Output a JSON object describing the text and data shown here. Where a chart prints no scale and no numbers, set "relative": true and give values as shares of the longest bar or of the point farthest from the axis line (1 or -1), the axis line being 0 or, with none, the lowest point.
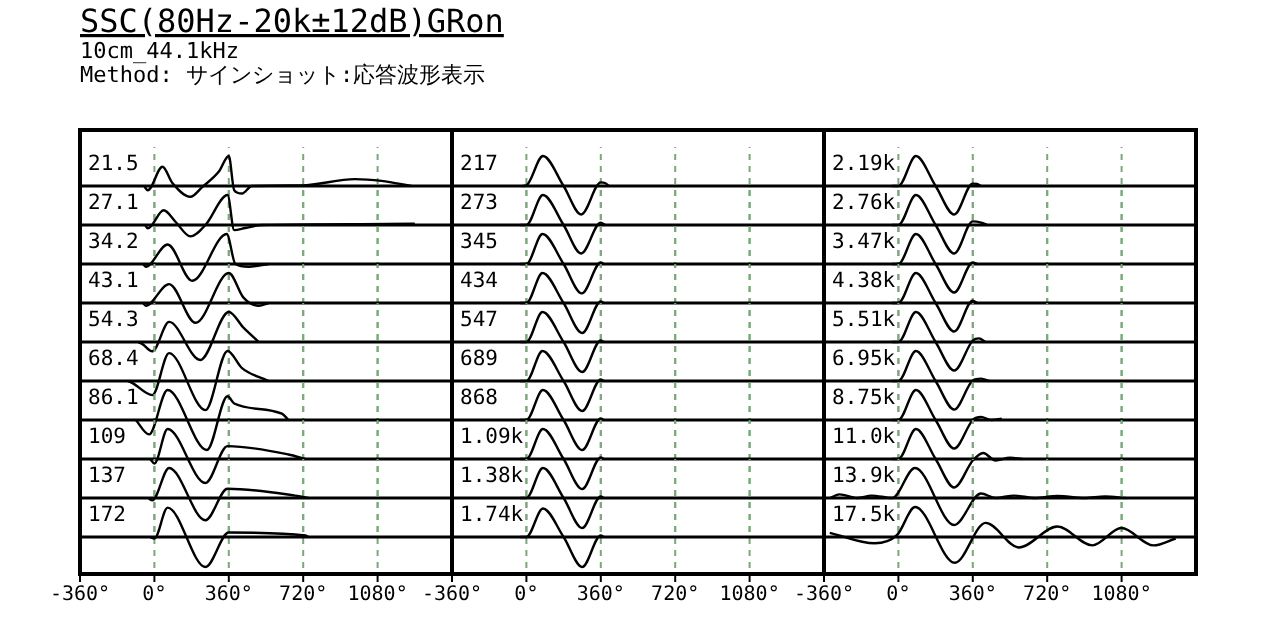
{
  "chart_data": [
    {
      "type": "line",
      "title": "SSC(80Hz-20k±12dB)GRon",
      "subtitle": "10cm_44.1kHz",
      "annotations": [
        "Method: サインショット:応答波形表示"
      ],
      "relative": true,
      "grid": "x",
      "tick_labels": false,
      "xlim": [
        -360,
        1440
      ],
      "xticks": [
        {
          "value": -360,
          "label": null
        },
        {
          "value": 0,
          "label": null
        },
        {
          "value": 360,
          "label": null
        },
        {
          "value": 720,
          "label": null
        },
        {
          "value": 1080,
          "label": null
        }
      ],
      "x": [
        -50,
        -32,
        39,
        87,
        174,
        231,
        312,
        360,
        386,
        424,
        472,
        713,
        970,
        1099,
        1244
      ],
      "series": [
        {
          "name": "21.5",
          "color": "#000000",
          "values": [
            0,
            -0.14,
            0.64,
            0.1,
            -0.36,
            -0.04,
            0.48,
            1,
            -0.14,
            -0.25,
            0,
            0.02,
            0.23,
            0.17,
            0
          ]
        }
      ]
    },
    {
      "type": "line",
      "relative": true,
      "grid": "x",
      "tick_labels": false,
      "xlim": [
        -360,
        1440
      ],
      "xticks": [
        {
          "value": -360,
          "label": null
        },
        {
          "value": 0,
          "label": null
        },
        {
          "value": 360,
          "label": null
        },
        {
          "value": 720,
          "label": null
        },
        {
          "value": 1080,
          "label": null
        }
      ],
      "x": [
        -45,
        -32,
        45,
        103,
        174,
        247,
        354,
        386,
        440,
        521,
        1000,
        1260
      ],
      "series": [
        {
          "name": "27.1",
          "color": "#000000",
          "values": [
            0,
            -0.11,
            0.49,
            0.1,
            -0.38,
            0,
            1,
            -0.17,
            -0.1,
            0,
            0.03,
            0.04
          ]
        }
      ]
    },
    {
      "type": "line",
      "relative": true,
      "grid": "x",
      "tick_labels": false,
      "xlim": [
        -360,
        1440
      ],
      "xticks": [
        {
          "value": -360,
          "label": null
        },
        {
          "value": 0,
          "label": null
        },
        {
          "value": 360,
          "label": null
        },
        {
          "value": 720,
          "label": null
        },
        {
          "value": 1080,
          "label": null
        }
      ],
      "x": [
        -55,
        -42,
        64,
        183,
        350,
        392,
        456,
        553
      ],
      "series": [
        {
          "name": "34.2",
          "color": "#000000",
          "values": [
            0,
            -0.09,
            0.65,
            -0.56,
            1,
            0,
            -0.09,
            0
          ]
        }
      ]
    },
    {
      "type": "line",
      "relative": true,
      "grid": "x",
      "tick_labels": false,
      "xlim": [
        -360,
        1440
      ],
      "xticks": [
        {
          "value": -360,
          "label": null
        },
        {
          "value": 0,
          "label": null
        },
        {
          "value": 360,
          "label": null
        },
        {
          "value": 720,
          "label": null
        },
        {
          "value": 1080,
          "label": null
        }
      ],
      "x": [
        -55,
        -42,
        71,
        199,
        360,
        431,
        505,
        553
      ],
      "series": [
        {
          "name": "43.1",
          "color": "#000000",
          "values": [
            0,
            -0.09,
            0.63,
            -0.66,
            1,
            0.18,
            -0.09,
            0
          ]
        }
      ]
    },
    {
      "type": "line",
      "relative": true,
      "grid": "x",
      "tick_labels": false,
      "xlim": [
        -360,
        1440
      ],
      "xticks": [
        {
          "value": -360,
          "label": null
        },
        {
          "value": 0,
          "label": null
        },
        {
          "value": 360,
          "label": null
        },
        {
          "value": 720,
          "label": null
        },
        {
          "value": 1080,
          "label": null
        }
      ],
      "x": [
        -80,
        -58,
        -10,
        71,
        222,
        360,
        431,
        505
      ],
      "series": [
        {
          "name": "54.3",
          "color": "#000000",
          "values": [
            0,
            -0.07,
            -0.31,
            0.67,
            -0.6,
            1,
            0.48,
            0
          ]
        }
      ]
    },
    {
      "type": "line",
      "relative": true,
      "grid": "x",
      "tick_labels": false,
      "xlim": [
        -360,
        1440
      ],
      "xticks": [
        {
          "value": -360,
          "label": null
        },
        {
          "value": 0,
          "label": null
        },
        {
          "value": 360,
          "label": null
        },
        {
          "value": 720,
          "label": null
        },
        {
          "value": 1080,
          "label": null
        }
      ],
      "x": [
        -130,
        -106,
        -10,
        71,
        247,
        354,
        424,
        553
      ],
      "series": [
        {
          "name": "68.4",
          "color": "#000000",
          "values": [
            0,
            -0.07,
            -0.47,
            0.93,
            -0.97,
            1,
            0.43,
            0
          ]
        }
      ]
    },
    {
      "type": "line",
      "relative": true,
      "grid": "x",
      "tick_labels": false,
      "xlim": [
        -360,
        1440
      ],
      "xticks": [
        {
          "value": -360,
          "label": null
        },
        {
          "value": 0,
          "label": null
        },
        {
          "value": 360,
          "label": null
        },
        {
          "value": 720,
          "label": null
        },
        {
          "value": 1080,
          "label": null
        }
      ],
      "x": [
        -90,
        -26,
        64,
        254,
        354,
        386,
        617,
        649
      ],
      "series": [
        {
          "name": "86.1",
          "color": "#000000",
          "values": [
            0,
            -0.48,
            1,
            -1,
            0.79,
            0.55,
            0.21,
            0
          ]
        }
      ]
    },
    {
      "type": "line",
      "relative": true,
      "grid": "x",
      "tick_labels": false,
      "xlim": [
        -360,
        1440
      ],
      "xticks": [
        {
          "value": -360,
          "label": null
        },
        {
          "value": 0,
          "label": null
        },
        {
          "value": 360,
          "label": null
        },
        {
          "value": 720,
          "label": null
        },
        {
          "value": 1080,
          "label": null
        }
      ],
      "x": [
        -20,
        0,
        64,
        247,
        354,
        649,
        730
      ],
      "series": [
        {
          "name": "109",
          "color": "#000000",
          "values": [
            0,
            -0.15,
            1,
            -0.8,
            0.43,
            0.15,
            0
          ]
        }
      ]
    },
    {
      "type": "line",
      "relative": true,
      "grid": "x",
      "tick_labels": false,
      "xlim": [
        -360,
        1440
      ],
      "xticks": [
        {
          "value": -360,
          "label": null
        },
        {
          "value": 0,
          "label": null
        },
        {
          "value": 360,
          "label": null
        },
        {
          "value": 720,
          "label": null
        },
        {
          "value": 1080,
          "label": null
        }
      ],
      "x": [
        -30,
        -10,
        71,
        247,
        354,
        681,
        746
      ],
      "series": [
        {
          "name": "137",
          "color": "#000000",
          "values": [
            0,
            -0.08,
            1,
            -0.74,
            0.31,
            0.08,
            0
          ]
        }
      ]
    },
    {
      "type": "line",
      "relative": true,
      "grid": "x",
      "tick_labels": "x",
      "xlim": [
        -360,
        1440
      ],
      "xticks": [
        {
          "value": -360,
          "label": "-360°"
        },
        {
          "value": 0,
          "label": "0°"
        },
        {
          "value": 360,
          "label": "360°"
        },
        {
          "value": 720,
          "label": "720°"
        },
        {
          "value": 1080,
          "label": "1080°"
        }
      ],
      "x": [
        -20,
        0,
        64,
        247,
        360,
        730,
        746
      ],
      "series": [
        {
          "name": "172",
          "color": "#000000",
          "values": [
            0,
            -0.05,
            0.98,
            -1,
            0.15,
            0.05,
            0
          ]
        }
      ]
    },
    {
      "type": "line",
      "relative": true,
      "grid": "x",
      "tick_labels": false,
      "xlim": [
        -360,
        1440
      ],
      "xticks": [
        {
          "value": -360,
          "label": null
        },
        {
          "value": 0,
          "label": null
        },
        {
          "value": 360,
          "label": null
        },
        {
          "value": 720,
          "label": null
        },
        {
          "value": 1080,
          "label": null
        }
      ],
      "x": [
        -20,
        0,
        80,
        180,
        265,
        360,
        380,
        400
      ],
      "series": [
        {
          "name": "217",
          "color": "#000000",
          "values": [
            0,
            0.02,
            1,
            0,
            -0.95,
            0.12,
            0.1,
            0
          ]
        }
      ]
    },
    {
      "type": "line",
      "relative": true,
      "grid": "x",
      "tick_labels": false,
      "xlim": [
        -360,
        1440
      ],
      "xticks": [
        {
          "value": -360,
          "label": null
        },
        {
          "value": 0,
          "label": null
        },
        {
          "value": 360,
          "label": null
        },
        {
          "value": 720,
          "label": null
        },
        {
          "value": 1080,
          "label": null
        }
      ],
      "x": [
        -30,
        0,
        80,
        180,
        265,
        360,
        380
      ],
      "series": [
        {
          "name": "273",
          "color": "#000000",
          "values": [
            0,
            0,
            1,
            0,
            -0.95,
            0.08,
            0
          ]
        }
      ]
    },
    {
      "type": "line",
      "relative": true,
      "grid": "x",
      "tick_labels": false,
      "xlim": [
        -360,
        1440
      ],
      "xticks": [
        {
          "value": -360,
          "label": null
        },
        {
          "value": 0,
          "label": null
        },
        {
          "value": 360,
          "label": null
        },
        {
          "value": 720,
          "label": null
        },
        {
          "value": 1080,
          "label": null
        }
      ],
      "x": [
        -30,
        0,
        78,
        180,
        268,
        360,
        375
      ],
      "series": [
        {
          "name": "345",
          "color": "#000000",
          "values": [
            0,
            0,
            1,
            0,
            -0.98,
            0.05,
            0
          ]
        }
      ]
    },
    {
      "type": "line",
      "relative": true,
      "grid": "x",
      "tick_labels": false,
      "xlim": [
        -360,
        1440
      ],
      "xticks": [
        {
          "value": -360,
          "label": null
        },
        {
          "value": 0,
          "label": null
        },
        {
          "value": 360,
          "label": null
        },
        {
          "value": 720,
          "label": null
        },
        {
          "value": 1080,
          "label": null
        }
      ],
      "x": [
        -30,
        0,
        78,
        180,
        270,
        360,
        375
      ],
      "series": [
        {
          "name": "434",
          "color": "#000000",
          "values": [
            0,
            0,
            1,
            0,
            -1,
            0.05,
            0
          ]
        }
      ]
    },
    {
      "type": "line",
      "relative": true,
      "grid": "x",
      "tick_labels": false,
      "xlim": [
        -360,
        1440
      ],
      "xticks": [
        {
          "value": -360,
          "label": null
        },
        {
          "value": 0,
          "label": null
        },
        {
          "value": 360,
          "label": null
        },
        {
          "value": 720,
          "label": null
        },
        {
          "value": 1080,
          "label": null
        }
      ],
      "x": [
        -30,
        0,
        78,
        180,
        270,
        360,
        375
      ],
      "series": [
        {
          "name": "547",
          "color": "#000000",
          "values": [
            0,
            0,
            1,
            0,
            -1,
            0.05,
            0
          ]
        }
      ]
    },
    {
      "type": "line",
      "relative": true,
      "grid": "x",
      "tick_labels": false,
      "xlim": [
        -360,
        1440
      ],
      "xticks": [
        {
          "value": -360,
          "label": null
        },
        {
          "value": 0,
          "label": null
        },
        {
          "value": 360,
          "label": null
        },
        {
          "value": 720,
          "label": null
        },
        {
          "value": 1080,
          "label": null
        }
      ],
      "x": [
        -30,
        0,
        78,
        180,
        270,
        360,
        375
      ],
      "series": [
        {
          "name": "689",
          "color": "#000000",
          "values": [
            0,
            0,
            1,
            0,
            -1,
            0.05,
            0
          ]
        }
      ]
    },
    {
      "type": "line",
      "relative": true,
      "grid": "x",
      "tick_labels": false,
      "xlim": [
        -360,
        1440
      ],
      "xticks": [
        {
          "value": -360,
          "label": null
        },
        {
          "value": 0,
          "label": null
        },
        {
          "value": 360,
          "label": null
        },
        {
          "value": 720,
          "label": null
        },
        {
          "value": 1080,
          "label": null
        }
      ],
      "x": [
        -30,
        0,
        80,
        180,
        270,
        360,
        375
      ],
      "series": [
        {
          "name": "868",
          "color": "#000000",
          "values": [
            0,
            0,
            1,
            0,
            -1,
            0.05,
            0
          ]
        }
      ]
    },
    {
      "type": "line",
      "relative": true,
      "grid": "x",
      "tick_labels": false,
      "xlim": [
        -360,
        1440
      ],
      "xticks": [
        {
          "value": -360,
          "label": null
        },
        {
          "value": 0,
          "label": null
        },
        {
          "value": 360,
          "label": null
        },
        {
          "value": 720,
          "label": null
        },
        {
          "value": 1080,
          "label": null
        }
      ],
      "x": [
        -30,
        0,
        80,
        180,
        270,
        360,
        375
      ],
      "series": [
        {
          "name": "1.09k",
          "color": "#000000",
          "values": [
            0,
            0,
            1,
            0,
            -1,
            0.05,
            0
          ]
        }
      ]
    },
    {
      "type": "line",
      "relative": true,
      "grid": "x",
      "tick_labels": false,
      "xlim": [
        -360,
        1440
      ],
      "xticks": [
        {
          "value": -360,
          "label": null
        },
        {
          "value": 0,
          "label": null
        },
        {
          "value": 360,
          "label": null
        },
        {
          "value": 720,
          "label": null
        },
        {
          "value": 1080,
          "label": null
        }
      ],
      "x": [
        -30,
        0,
        80,
        180,
        270,
        360,
        375
      ],
      "series": [
        {
          "name": "1.38k",
          "color": "#000000",
          "values": [
            0,
            0,
            1,
            0,
            -1,
            0.05,
            0
          ]
        }
      ]
    },
    {
      "type": "line",
      "relative": true,
      "grid": "x",
      "tick_labels": "x",
      "xlim": [
        -360,
        1440
      ],
      "xticks": [
        {
          "value": -360,
          "label": "-360°"
        },
        {
          "value": 0,
          "label": "0°"
        },
        {
          "value": 360,
          "label": "360°"
        },
        {
          "value": 720,
          "label": "720°"
        },
        {
          "value": 1080,
          "label": "1080°"
        }
      ],
      "x": [
        -30,
        0,
        80,
        180,
        270,
        360,
        375
      ],
      "series": [
        {
          "name": "1.74k",
          "color": "#000000",
          "values": [
            0,
            0,
            0.95,
            0,
            -1,
            0.05,
            0
          ]
        }
      ]
    },
    {
      "type": "line",
      "relative": true,
      "grid": "x",
      "tick_labels": false,
      "xlim": [
        -360,
        1440
      ],
      "xticks": [
        {
          "value": -360,
          "label": null
        },
        {
          "value": 0,
          "label": null
        },
        {
          "value": 360,
          "label": null
        },
        {
          "value": 720,
          "label": null
        },
        {
          "value": 1080,
          "label": null
        }
      ],
      "x": [
        -30,
        0,
        85,
        180,
        270,
        360,
        380,
        400
      ],
      "series": [
        {
          "name": "2.19k",
          "color": "#000000",
          "values": [
            0,
            0,
            1,
            0,
            -0.95,
            0.08,
            0.07,
            0
          ]
        }
      ]
    },
    {
      "type": "line",
      "relative": true,
      "grid": "x",
      "tick_labels": false,
      "xlim": [
        -360,
        1440
      ],
      "xticks": [
        {
          "value": -360,
          "label": null
        },
        {
          "value": 0,
          "label": null
        },
        {
          "value": 360,
          "label": null
        },
        {
          "value": 720,
          "label": null
        },
        {
          "value": 1080,
          "label": null
        }
      ],
      "x": [
        -30,
        0,
        85,
        180,
        270,
        360,
        400,
        430
      ],
      "series": [
        {
          "name": "2.76k",
          "color": "#000000",
          "values": [
            0,
            0,
            1,
            0,
            -0.95,
            0.12,
            0.08,
            0
          ]
        }
      ]
    },
    {
      "type": "line",
      "relative": true,
      "grid": "x",
      "tick_labels": false,
      "xlim": [
        -360,
        1440
      ],
      "xticks": [
        {
          "value": -360,
          "label": null
        },
        {
          "value": 0,
          "label": null
        },
        {
          "value": 360,
          "label": null
        },
        {
          "value": 720,
          "label": null
        },
        {
          "value": 1080,
          "label": null
        }
      ],
      "x": [
        -30,
        0,
        85,
        180,
        270,
        360,
        380
      ],
      "series": [
        {
          "name": "3.47k",
          "color": "#000000",
          "values": [
            0,
            0,
            1,
            0,
            -0.95,
            0.05,
            0
          ]
        }
      ]
    },
    {
      "type": "line",
      "relative": true,
      "grid": "x",
      "tick_labels": false,
      "xlim": [
        -360,
        1440
      ],
      "xticks": [
        {
          "value": -360,
          "label": null
        },
        {
          "value": 0,
          "label": null
        },
        {
          "value": 360,
          "label": null
        },
        {
          "value": 720,
          "label": null
        },
        {
          "value": 1080,
          "label": null
        }
      ],
      "x": [
        -30,
        0,
        85,
        180,
        270,
        360,
        380
      ],
      "series": [
        {
          "name": "4.38k",
          "color": "#000000",
          "values": [
            0,
            0,
            1,
            0,
            -0.95,
            0.08,
            0
          ]
        }
      ]
    },
    {
      "type": "line",
      "relative": true,
      "grid": "x",
      "tick_labels": false,
      "xlim": [
        -360,
        1440
      ],
      "xticks": [
        {
          "value": -360,
          "label": null
        },
        {
          "value": 0,
          "label": null
        },
        {
          "value": 360,
          "label": null
        },
        {
          "value": 720,
          "label": null
        },
        {
          "value": 1080,
          "label": null
        }
      ],
      "x": [
        -30,
        0,
        85,
        180,
        270,
        360,
        390,
        420
      ],
      "series": [
        {
          "name": "5.51k",
          "color": "#000000",
          "values": [
            0,
            0,
            1,
            0,
            -0.95,
            0.05,
            0.12,
            0
          ]
        }
      ]
    },
    {
      "type": "line",
      "relative": true,
      "grid": "x",
      "tick_labels": false,
      "xlim": [
        -360,
        1440
      ],
      "xticks": [
        {
          "value": -360,
          "label": null
        },
        {
          "value": 0,
          "label": null
        },
        {
          "value": 360,
          "label": null
        },
        {
          "value": 720,
          "label": null
        },
        {
          "value": 1080,
          "label": null
        }
      ],
      "x": [
        -30,
        0,
        85,
        180,
        270,
        360,
        400,
        440
      ],
      "series": [
        {
          "name": "6.95k",
          "color": "#000000",
          "values": [
            0,
            0,
            1,
            0,
            -0.95,
            0.02,
            0.08,
            0
          ]
        }
      ]
    },
    {
      "type": "line",
      "relative": true,
      "grid": "x",
      "tick_labels": false,
      "xlim": [
        -360,
        1440
      ],
      "xticks": [
        {
          "value": -360,
          "label": null
        },
        {
          "value": 0,
          "label": null
        },
        {
          "value": 360,
          "label": null
        },
        {
          "value": 720,
          "label": null
        },
        {
          "value": 1080,
          "label": null
        }
      ],
      "x": [
        -30,
        0,
        85,
        180,
        270,
        360,
        400,
        450,
        500
      ],
      "series": [
        {
          "name": "8.75k",
          "color": "#000000",
          "values": [
            0,
            0,
            1,
            0,
            -0.95,
            0,
            0.1,
            0,
            0.04
          ]
        }
      ]
    },
    {
      "type": "line",
      "relative": true,
      "grid": "x",
      "tick_labels": false,
      "xlim": [
        -360,
        1440
      ],
      "xticks": [
        {
          "value": -360,
          "label": null
        },
        {
          "value": 0,
          "label": null
        },
        {
          "value": 360,
          "label": null
        },
        {
          "value": 720,
          "label": null
        },
        {
          "value": 1080,
          "label": null
        }
      ],
      "x": [
        -30,
        0,
        85,
        180,
        270,
        360,
        410,
        470,
        540,
        600
      ],
      "series": [
        {
          "name": "11.0k",
          "color": "#000000",
          "values": [
            0,
            0,
            1,
            0,
            -0.95,
            -0.05,
            0.2,
            -0.05,
            0.04,
            0
          ]
        }
      ]
    },
    {
      "type": "line",
      "relative": true,
      "grid": "x",
      "tick_labels": false,
      "xlim": [
        -360,
        1440
      ],
      "xticks": [
        {
          "value": -360,
          "label": null
        },
        {
          "value": 0,
          "label": null
        },
        {
          "value": 360,
          "label": null
        },
        {
          "value": 720,
          "label": null
        },
        {
          "value": 1080,
          "label": null
        }
      ],
      "x": [
        -330,
        -285,
        -200,
        -130,
        -30,
        80,
        270,
        400,
        470,
        560,
        660,
        770,
        900,
        1000,
        1100
      ],
      "series": [
        {
          "name": "13.9k",
          "color": "#000000",
          "values": [
            0,
            0.12,
            0,
            0.08,
            0,
            1,
            -0.9,
            0.15,
            0,
            0.08,
            0,
            0.07,
            0,
            0.05,
            0
          ]
        }
      ]
    },
    {
      "type": "line",
      "relative": true,
      "grid": "x",
      "tick_labels": "x",
      "xlim": [
        -360,
        1440
      ],
      "xticks": [
        {
          "value": -360,
          "label": "-360°"
        },
        {
          "value": 0,
          "label": "0°"
        },
        {
          "value": 360,
          "label": "360°"
        },
        {
          "value": 720,
          "label": "720°"
        },
        {
          "value": 1080,
          "label": "1080°"
        }
      ],
      "x": [
        -332,
        -115,
        -6,
        81,
        273,
        422,
        583,
        769,
        939,
        1079,
        1234,
        1342
      ],
      "series": [
        {
          "name": "17.5k",
          "color": "#000000",
          "values": [
            0.14,
            -0.21,
            0.07,
            1,
            -0.86,
            0.47,
            -0.35,
            0.35,
            -0.28,
            0.3,
            -0.28,
            -0.05
          ]
        }
      ]
    }
  ]
}
